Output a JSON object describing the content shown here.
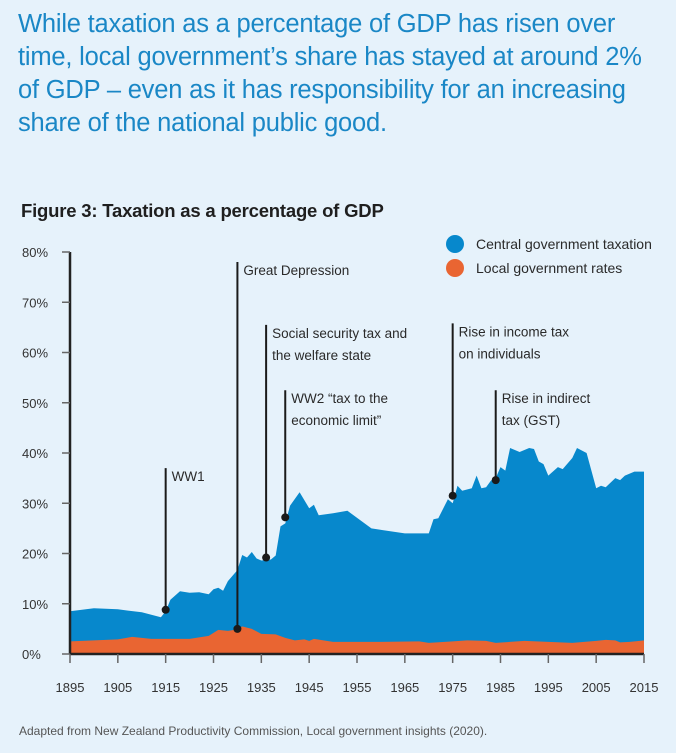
{
  "headline": "While taxation as a percentage of GDP has risen over time, local government’s share has stayed at around 2% of GDP – even as it has responsibility for an increasing share of the national public good.",
  "source": "Adapted from New Zealand Productivity Commission, Local government insights (2020).",
  "colors": {
    "central": "#0788cc",
    "local": "#e96532",
    "headline": "#1a87c6",
    "background": "#e6f2fb",
    "axis": "#222222"
  },
  "chart_data": {
    "type": "area",
    "stacked": true,
    "title": "Figure 3: Taxation as a percentage of GDP",
    "xlabel": "",
    "ylabel": "",
    "xlim": [
      1895,
      2015
    ],
    "ylim": [
      0,
      80
    ],
    "x_ticks": [
      "1895",
      "1905",
      "1915",
      "1925",
      "1935",
      "1945",
      "1955",
      "1965",
      "1975",
      "1985",
      "1995",
      "2005",
      "2015"
    ],
    "y_ticks": [
      "0%",
      "10%",
      "20%",
      "30%",
      "40%",
      "50%",
      "60%",
      "70%",
      "80%"
    ],
    "grid": false,
    "legend": {
      "position": "top-right",
      "entries": [
        "Central government taxation",
        "Local government rates"
      ]
    },
    "series": [
      {
        "name": "Central government taxation",
        "note": "total taxation (central stacked on local), % of GDP",
        "points": [
          [
            1895,
            8.5
          ],
          [
            1900,
            9.1
          ],
          [
            1905,
            8.9
          ],
          [
            1910,
            8.3
          ],
          [
            1914,
            7.3
          ],
          [
            1915,
            8.5
          ],
          [
            1916,
            10.8
          ],
          [
            1918,
            12.5
          ],
          [
            1920,
            12.2
          ],
          [
            1922,
            12.3
          ],
          [
            1924,
            11.9
          ],
          [
            1925,
            12.9
          ],
          [
            1926,
            13.2
          ],
          [
            1927,
            12.6
          ],
          [
            1928,
            14.5
          ],
          [
            1930,
            16.7
          ],
          [
            1931,
            19.7
          ],
          [
            1932,
            19.2
          ],
          [
            1933,
            20.3
          ],
          [
            1934,
            19.0
          ],
          [
            1935,
            18.6
          ],
          [
            1937,
            18.8
          ],
          [
            1938,
            19.6
          ],
          [
            1939,
            25.4
          ],
          [
            1940,
            26.0
          ],
          [
            1941,
            29.5
          ],
          [
            1943,
            32.2
          ],
          [
            1945,
            29.0
          ],
          [
            1946,
            29.7
          ],
          [
            1947,
            27.6
          ],
          [
            1950,
            28.0
          ],
          [
            1953,
            28.5
          ],
          [
            1958,
            25.0
          ],
          [
            1965,
            24.0
          ],
          [
            1970,
            24.0
          ],
          [
            1971,
            26.8
          ],
          [
            1972,
            27.0
          ],
          [
            1974,
            30.8
          ],
          [
            1975,
            30.0
          ],
          [
            1976,
            33.5
          ],
          [
            1977,
            32.5
          ],
          [
            1979,
            33.0
          ],
          [
            1980,
            35.5
          ],
          [
            1981,
            33.0
          ],
          [
            1982,
            33.2
          ],
          [
            1983,
            34.5
          ],
          [
            1984,
            35.0
          ],
          [
            1985,
            37.2
          ],
          [
            1986,
            36.5
          ],
          [
            1987,
            41.0
          ],
          [
            1989,
            40.2
          ],
          [
            1991,
            41.0
          ],
          [
            1992,
            40.8
          ],
          [
            1993,
            38.3
          ],
          [
            1994,
            37.8
          ],
          [
            1995,
            35.5
          ],
          [
            1997,
            37.2
          ],
          [
            1998,
            36.8
          ],
          [
            2000,
            39.0
          ],
          [
            2001,
            41.0
          ],
          [
            2003,
            40.0
          ],
          [
            2005,
            33.0
          ],
          [
            2006,
            33.5
          ],
          [
            2007,
            33.2
          ],
          [
            2009,
            35.0
          ],
          [
            2010,
            34.6
          ],
          [
            2011,
            35.5
          ],
          [
            2013,
            36.3
          ],
          [
            2015,
            36.3
          ]
        ]
      },
      {
        "name": "Local government rates",
        "note": "% of GDP",
        "points": [
          [
            1895,
            2.5
          ],
          [
            1900,
            2.7
          ],
          [
            1905,
            2.9
          ],
          [
            1908,
            3.4
          ],
          [
            1912,
            3.0
          ],
          [
            1920,
            3.0
          ],
          [
            1924,
            3.6
          ],
          [
            1926,
            4.8
          ],
          [
            1928,
            4.6
          ],
          [
            1930,
            4.9
          ],
          [
            1931,
            5.5
          ],
          [
            1933,
            5.0
          ],
          [
            1935,
            4.0
          ],
          [
            1938,
            3.9
          ],
          [
            1940,
            3.2
          ],
          [
            1942,
            2.7
          ],
          [
            1944,
            2.9
          ],
          [
            1945,
            2.6
          ],
          [
            1946,
            3.0
          ],
          [
            1948,
            2.7
          ],
          [
            1950,
            2.4
          ],
          [
            1960,
            2.4
          ],
          [
            1968,
            2.5
          ],
          [
            1970,
            2.2
          ],
          [
            1975,
            2.5
          ],
          [
            1978,
            2.7
          ],
          [
            1982,
            2.6
          ],
          [
            1984,
            2.2
          ],
          [
            1990,
            2.6
          ],
          [
            1995,
            2.4
          ],
          [
            2000,
            2.2
          ],
          [
            2005,
            2.6
          ],
          [
            2007,
            2.8
          ],
          [
            2009,
            2.7
          ],
          [
            2010,
            2.3
          ],
          [
            2012,
            2.4
          ],
          [
            2015,
            2.7
          ]
        ]
      }
    ],
    "annotations": [
      {
        "label_lines": [
          "WW1"
        ],
        "year": 1915,
        "value": 8.8
      },
      {
        "label_lines": [
          "Great Depression"
        ],
        "year": 1930,
        "value": 5.0
      },
      {
        "label_lines": [
          "Social security tax and",
          "the welfare state"
        ],
        "year": 1936,
        "value": 19.2
      },
      {
        "label_lines": [
          "WW2 “tax to the",
          "economic limit”"
        ],
        "year": 1940,
        "value": 27.2
      },
      {
        "label_lines": [
          "Rise in income tax",
          "on individuals"
        ],
        "year": 1975,
        "value": 31.5
      },
      {
        "label_lines": [
          "Rise in indirect",
          "tax (GST)"
        ],
        "year": 1984,
        "value": 34.6
      }
    ]
  }
}
